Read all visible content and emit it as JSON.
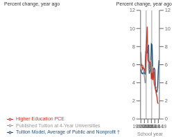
{
  "chart_data": {
    "type": "line",
    "ylabel": "Percent change, year ago",
    "y2label": "Percent change, year ago",
    "xlabel": "School year",
    "x": [
      1993,
      1994,
      1995,
      1996,
      1997,
      1998,
      1999,
      2000,
      2001,
      2002,
      2003,
      2004,
      2005,
      2006,
      2007,
      2008,
      2009,
      2010,
      2011,
      2012,
      2013,
      2014,
      2015,
      2016,
      2017,
      2018,
      2019
    ],
    "xlim": [
      1992.5,
      2019.5
    ],
    "xticks": [
      {
        "value": 1993,
        "label": "1993-04"
      },
      {
        "value": 1998,
        "label": "1998-99"
      },
      {
        "value": 2003,
        "label": "2003-04"
      },
      {
        "value": 2008,
        "label": "2008-09"
      },
      {
        "value": 2013,
        "label": "2013-14"
      },
      {
        "value": 2018,
        "label": "2018-19"
      }
    ],
    "ylim": [
      0,
      12
    ],
    "yticks": [
      0,
      2,
      4,
      6,
      8,
      10,
      12
    ],
    "y2lim": [
      0,
      12
    ],
    "y2ticks": [
      0,
      2,
      4,
      6,
      8,
      10,
      12
    ],
    "recession_bands": [
      {
        "from": 1999.5,
        "to": 2001.5,
        "color": "#cccccc"
      },
      {
        "from": 2007.5,
        "to": 2009.5,
        "color": "#cccccc"
      }
    ],
    "series": [
      {
        "name": "Tuition Model, Average of Public and Nonprofit †",
        "color": "#1f4e79",
        "values": [
          5.5,
          5.1,
          5.0,
          5.1,
          5.0,
          5.1,
          5.0,
          7.4,
          7.3,
          7.3,
          8.0,
          8.1,
          5.0,
          5.5,
          5.5,
          8.3,
          8.2,
          5.5,
          5.5,
          5.6,
          5.5,
          3.2,
          3.1,
          3.0,
          3.5,
          5.5,
          6.5
        ]
      },
      {
        "name": "Published Tuition at 4-Year Universities",
        "color": "#999999",
        "values": [
          7.4,
          6.1,
          5.9,
          5.9,
          5.2,
          4.7,
          4.0,
          4.0,
          7.9,
          8.0,
          8.0,
          5.4,
          5.4,
          5.5,
          6.5,
          5.8,
          4.4,
          5.8,
          5.0,
          5.2,
          3.8,
          3.6,
          3.5,
          3.4,
          3.4,
          3.4,
          null
        ]
      },
      {
        "name": "Higher Education PCE",
        "color": "#c0392b",
        "values": [
          5.9,
          6.0,
          5.5,
          5.7,
          5.6,
          5.5,
          5.2,
          6.6,
          8.5,
          10.2,
          6.5,
          6.4,
          6.3,
          6.3,
          5.9,
          4.4,
          5.1,
          4.3,
          5.6,
          3.9,
          3.6,
          3.3,
          2.8,
          2.5,
          1.8,
          1.7,
          null
        ]
      }
    ],
    "grid": false,
    "legend": "bottom"
  }
}
